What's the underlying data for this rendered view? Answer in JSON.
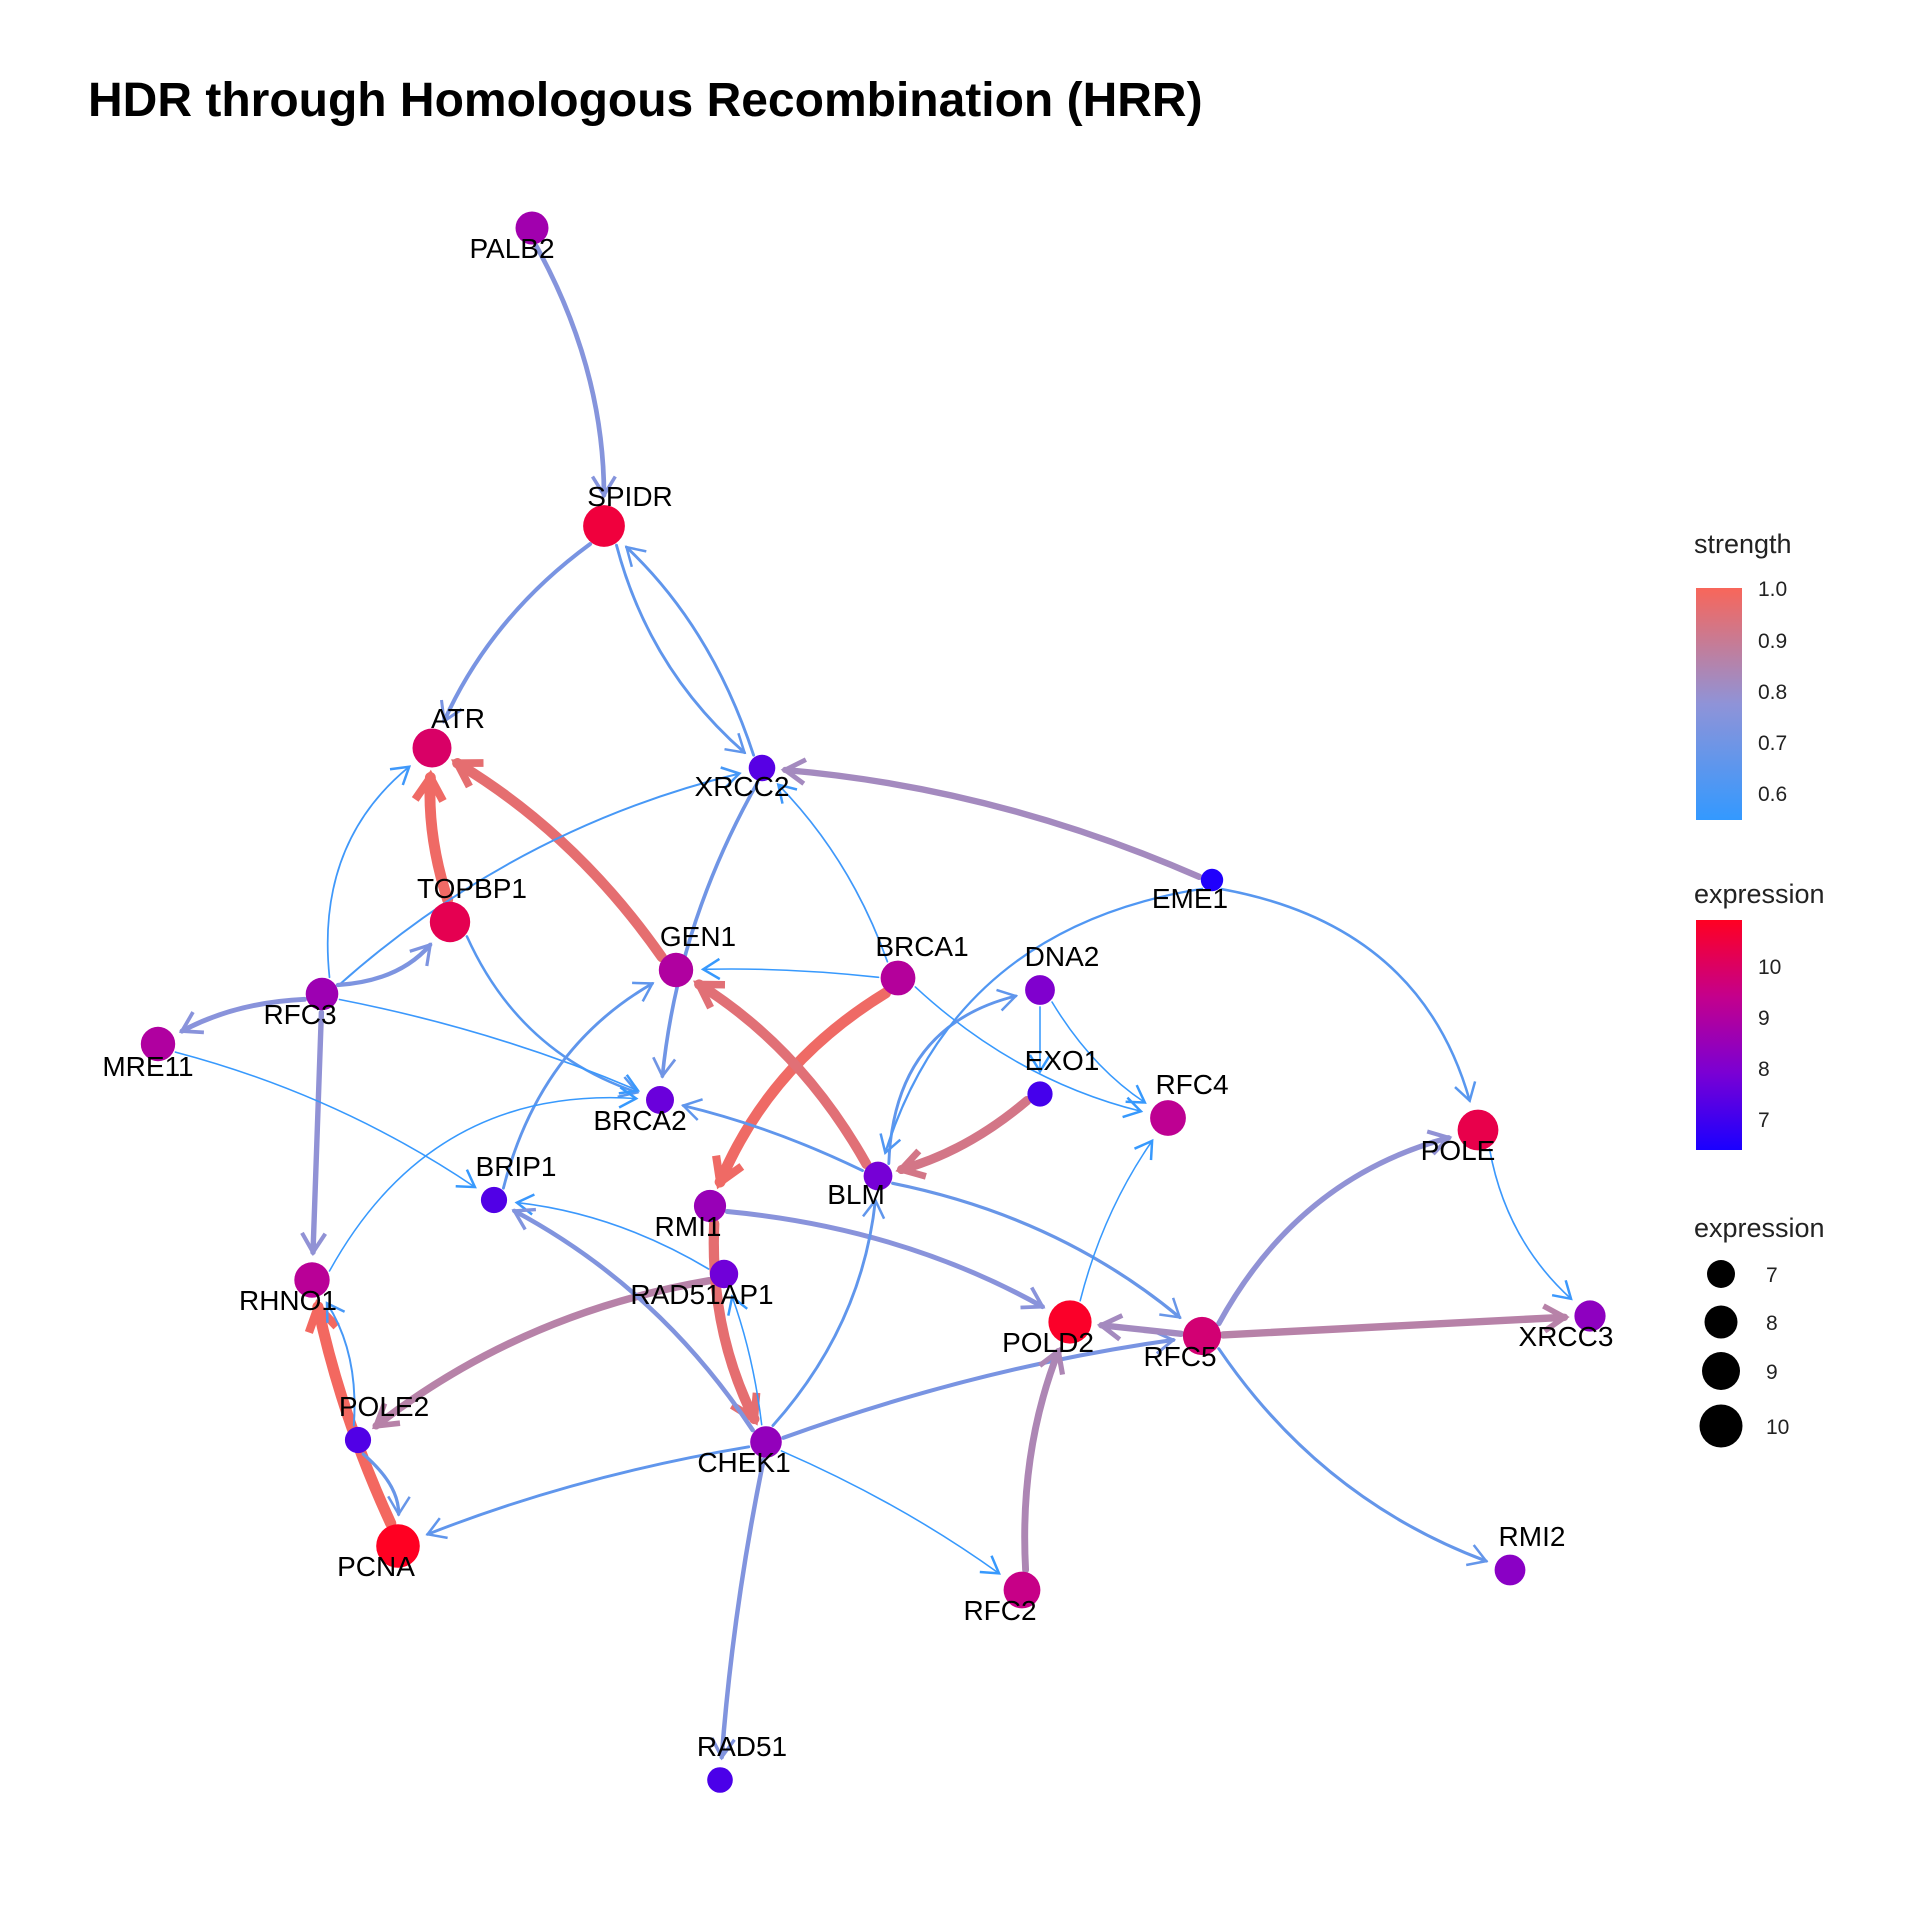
{
  "title": "HDR through Homologous Recombination (HRR)",
  "nodes": [
    {
      "id": "PALB2",
      "label": "PALB2",
      "expression": 8.7
    },
    {
      "id": "SPIDR",
      "label": "SPIDR",
      "expression": 10.6
    },
    {
      "id": "ATR",
      "label": "ATR",
      "expression": 10.0
    },
    {
      "id": "XRCC2",
      "label": "XRCC2",
      "expression": 7.3
    },
    {
      "id": "EME1",
      "label": "EME1",
      "expression": 6.4
    },
    {
      "id": "TOPBP1",
      "label": "TOPBP1",
      "expression": 10.3
    },
    {
      "id": "GEN1",
      "label": "GEN1",
      "expression": 9.0
    },
    {
      "id": "BRCA1",
      "label": "BRCA1",
      "expression": 9.1
    },
    {
      "id": "DNA2",
      "label": "DNA2",
      "expression": 8.0
    },
    {
      "id": "RFC3",
      "label": "RFC3",
      "expression": 8.6
    },
    {
      "id": "MRE11",
      "label": "MRE11",
      "expression": 9.0
    },
    {
      "id": "EXO1",
      "label": "EXO1",
      "expression": 7.0
    },
    {
      "id": "RFC4",
      "label": "RFC4",
      "expression": 9.3
    },
    {
      "id": "BRCA2",
      "label": "BRCA2",
      "expression": 7.6
    },
    {
      "id": "POLE",
      "label": "POLE",
      "expression": 10.4
    },
    {
      "id": "BRIP1",
      "label": "BRIP1",
      "expression": 7.2
    },
    {
      "id": "BLM",
      "label": "BLM",
      "expression": 7.8
    },
    {
      "id": "RMI1",
      "label": "RMI1",
      "expression": 8.5
    },
    {
      "id": "RAD51AP1",
      "label": "RAD51AP1",
      "expression": 7.7
    },
    {
      "id": "RHNO1",
      "label": "RHNO1",
      "expression": 9.2
    },
    {
      "id": "POLD2",
      "label": "POLD2",
      "expression": 10.9
    },
    {
      "id": "RFC5",
      "label": "RFC5",
      "expression": 9.8
    },
    {
      "id": "XRCC3",
      "label": "XRCC3",
      "expression": 8.3
    },
    {
      "id": "POLE2",
      "label": "POLE2",
      "expression": 7.2
    },
    {
      "id": "CHEK1",
      "label": "CHEK1",
      "expression": 8.4
    },
    {
      "id": "PCNA",
      "label": "PCNA",
      "expression": 11.0
    },
    {
      "id": "RFC2",
      "label": "RFC2",
      "expression": 9.5
    },
    {
      "id": "RMI2",
      "label": "RMI2",
      "expression": 8.2
    },
    {
      "id": "RAD51",
      "label": "RAD51",
      "expression": 7.1
    }
  ],
  "edges": [
    {
      "from": "PALB2",
      "to": "SPIDR",
      "strength": 0.75
    },
    {
      "from": "SPIDR",
      "to": "ATR",
      "strength": 0.72
    },
    {
      "from": "XRCC2",
      "to": "SPIDR",
      "strength": 0.66
    },
    {
      "from": "SPIDR",
      "to": "XRCC2",
      "strength": 0.66
    },
    {
      "from": "EME1",
      "to": "XRCC2",
      "strength": 0.82
    },
    {
      "from": "GEN1",
      "to": "ATR",
      "strength": 0.96
    },
    {
      "from": "TOPBP1",
      "to": "ATR",
      "strength": 0.98
    },
    {
      "from": "RFC3",
      "to": "ATR",
      "strength": 0.58
    },
    {
      "from": "RFC3",
      "to": "XRCC2",
      "strength": 0.6
    },
    {
      "from": "XRCC2",
      "to": "BRCA2",
      "strength": 0.7
    },
    {
      "from": "BRCA1",
      "to": "XRCC2",
      "strength": 0.58
    },
    {
      "from": "RFC3",
      "to": "MRE11",
      "strength": 0.76
    },
    {
      "from": "RFC3",
      "to": "TOPBP1",
      "strength": 0.73
    },
    {
      "from": "RFC3",
      "to": "RHNO1",
      "strength": 0.78
    },
    {
      "from": "TOPBP1",
      "to": "BRCA2",
      "strength": 0.64
    },
    {
      "from": "RFC3",
      "to": "BRCA2",
      "strength": 0.57
    },
    {
      "from": "MRE11",
      "to": "BRIP1",
      "strength": 0.56
    },
    {
      "from": "BRCA1",
      "to": "GEN1",
      "strength": 0.56
    },
    {
      "from": "DNA2",
      "to": "RFC4",
      "strength": 0.56
    },
    {
      "from": "BRCA1",
      "to": "RFC4",
      "strength": 0.56
    },
    {
      "from": "DNA2",
      "to": "EXO1",
      "strength": 0.56
    },
    {
      "from": "BRCA1",
      "to": "RMI1",
      "strength": 0.98
    },
    {
      "from": "EXO1",
      "to": "BLM",
      "strength": 0.92
    },
    {
      "from": "BLM",
      "to": "GEN1",
      "strength": 0.95
    },
    {
      "from": "BLM",
      "to": "DNA2",
      "strength": 0.66
    },
    {
      "from": "EME1",
      "to": "BLM",
      "strength": 0.62
    },
    {
      "from": "EME1",
      "to": "POLE",
      "strength": 0.64
    },
    {
      "from": "POLE",
      "to": "XRCC3",
      "strength": 0.57
    },
    {
      "from": "BRIP1",
      "to": "GEN1",
      "strength": 0.66
    },
    {
      "from": "RHNO1",
      "to": "BRCA2",
      "strength": 0.56
    },
    {
      "from": "BLM",
      "to": "BRCA2",
      "strength": 0.66
    },
    {
      "from": "BLM",
      "to": "RFC5",
      "strength": 0.68
    },
    {
      "from": "RMI1",
      "to": "POLD2",
      "strength": 0.76
    },
    {
      "from": "RAD51AP1",
      "to": "BRIP1",
      "strength": 0.57
    },
    {
      "from": "RAD51AP1",
      "to": "POLE2",
      "strength": 0.86
    },
    {
      "from": "RMI1",
      "to": "CHEK1",
      "strength": 0.96
    },
    {
      "from": "CHEK1",
      "to": "BRIP1",
      "strength": 0.74
    },
    {
      "from": "CHEK1",
      "to": "BLM",
      "strength": 0.66
    },
    {
      "from": "CHEK1",
      "to": "RAD51AP1",
      "strength": 0.56
    },
    {
      "from": "CHEK1",
      "to": "RFC5",
      "strength": 0.72
    },
    {
      "from": "CHEK1",
      "to": "PCNA",
      "strength": 0.66
    },
    {
      "from": "CHEK1",
      "to": "RFC2",
      "strength": 0.56
    },
    {
      "from": "CHEK1",
      "to": "RAD51",
      "strength": 0.74
    },
    {
      "from": "RFC5",
      "to": "POLE",
      "strength": 0.78
    },
    {
      "from": "RFC5",
      "to": "POLD2",
      "strength": 0.82
    },
    {
      "from": "RFC5",
      "to": "XRCC3",
      "strength": 0.86
    },
    {
      "from": "RFC5",
      "to": "RMI2",
      "strength": 0.67
    },
    {
      "from": "RFC2",
      "to": "POLD2",
      "strength": 0.84
    },
    {
      "from": "POLD2",
      "to": "RFC4",
      "strength": 0.56
    },
    {
      "from": "PCNA",
      "to": "RHNO1",
      "strength": 0.99
    },
    {
      "from": "POLE2",
      "to": "RHNO1",
      "strength": 0.6
    },
    {
      "from": "POLE2",
      "to": "PCNA",
      "strength": 0.68
    }
  ],
  "legend": {
    "strength": {
      "title": "strength",
      "ticks": [
        "1.0",
        "0.9",
        "0.8",
        "0.7",
        "0.6"
      ],
      "colors": [
        "#f8665a",
        "#8f93d8",
        "#3399ff"
      ]
    },
    "expression_color": {
      "title": "expression",
      "ticks": [
        "10",
        "9",
        "8",
        "7"
      ],
      "colors": [
        "#ff0022",
        "#c4008c",
        "#7a00d4",
        "#1a00ff"
      ]
    },
    "expression_size": {
      "title": "expression",
      "ticks": [
        "7",
        "8",
        "9",
        "10"
      ]
    }
  }
}
